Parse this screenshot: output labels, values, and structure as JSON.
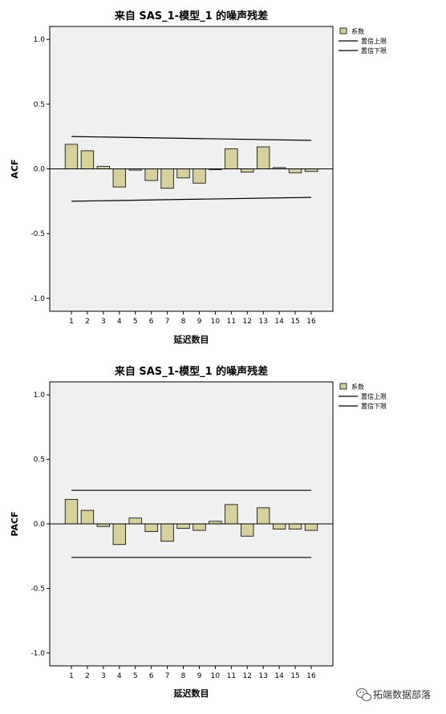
{
  "chart_data": [
    {
      "type": "bar",
      "title": "来自 SAS_1-模型_1 的噪声残差",
      "xlabel": "延迟数目",
      "ylabel": "ACF",
      "ylim": [
        -1.1,
        1.1
      ],
      "yticks": [
        1.0,
        0.5,
        0.0,
        -0.5,
        -1.0
      ],
      "ytick_labels": [
        "1.0",
        "0.5",
        "0.0",
        "-0.5",
        "-1.0"
      ],
      "categories": [
        "1",
        "2",
        "3",
        "4",
        "5",
        "6",
        "7",
        "8",
        "9",
        "10",
        "11",
        "12",
        "13",
        "14",
        "15",
        "16"
      ],
      "series": [
        {
          "name": "系数",
          "color": "#d6d09a",
          "values": [
            0.19,
            0.14,
            0.02,
            -0.14,
            -0.01,
            -0.09,
            -0.15,
            -0.07,
            -0.11,
            0.0,
            0.155,
            -0.025,
            0.17,
            0.01,
            -0.03,
            -0.02
          ]
        }
      ],
      "upper_limit": {
        "name": "置信上限",
        "start": 0.25,
        "end": 0.22
      },
      "lower_limit": {
        "name": "置信下限",
        "start": -0.25,
        "end": -0.22
      },
      "grid": false,
      "legend": "top-right"
    },
    {
      "type": "bar",
      "title": "来自 SAS_1-模型_1 的噪声残差",
      "xlabel": "延迟数目",
      "ylabel": "PACF",
      "ylim": [
        -1.1,
        1.1
      ],
      "yticks": [
        1.0,
        0.5,
        0.0,
        -0.5,
        -1.0
      ],
      "ytick_labels": [
        "1.0",
        "0.5",
        "0.0",
        "-0.5",
        "-1.0"
      ],
      "categories": [
        "1",
        "2",
        "3",
        "4",
        "5",
        "6",
        "7",
        "8",
        "9",
        "10",
        "11",
        "12",
        "13",
        "14",
        "15",
        "16"
      ],
      "series": [
        {
          "name": "系数",
          "color": "#d6d09a",
          "values": [
            0.19,
            0.105,
            -0.02,
            -0.16,
            0.045,
            -0.06,
            -0.135,
            -0.035,
            -0.05,
            0.02,
            0.15,
            -0.095,
            0.125,
            -0.04,
            -0.04,
            -0.05
          ]
        }
      ],
      "upper_limit": {
        "name": "置信上限",
        "start": 0.26,
        "end": 0.26
      },
      "lower_limit": {
        "name": "置信下限",
        "start": -0.26,
        "end": -0.26
      },
      "grid": false,
      "legend": "top-right"
    }
  ],
  "watermark": "拓端数据部落"
}
